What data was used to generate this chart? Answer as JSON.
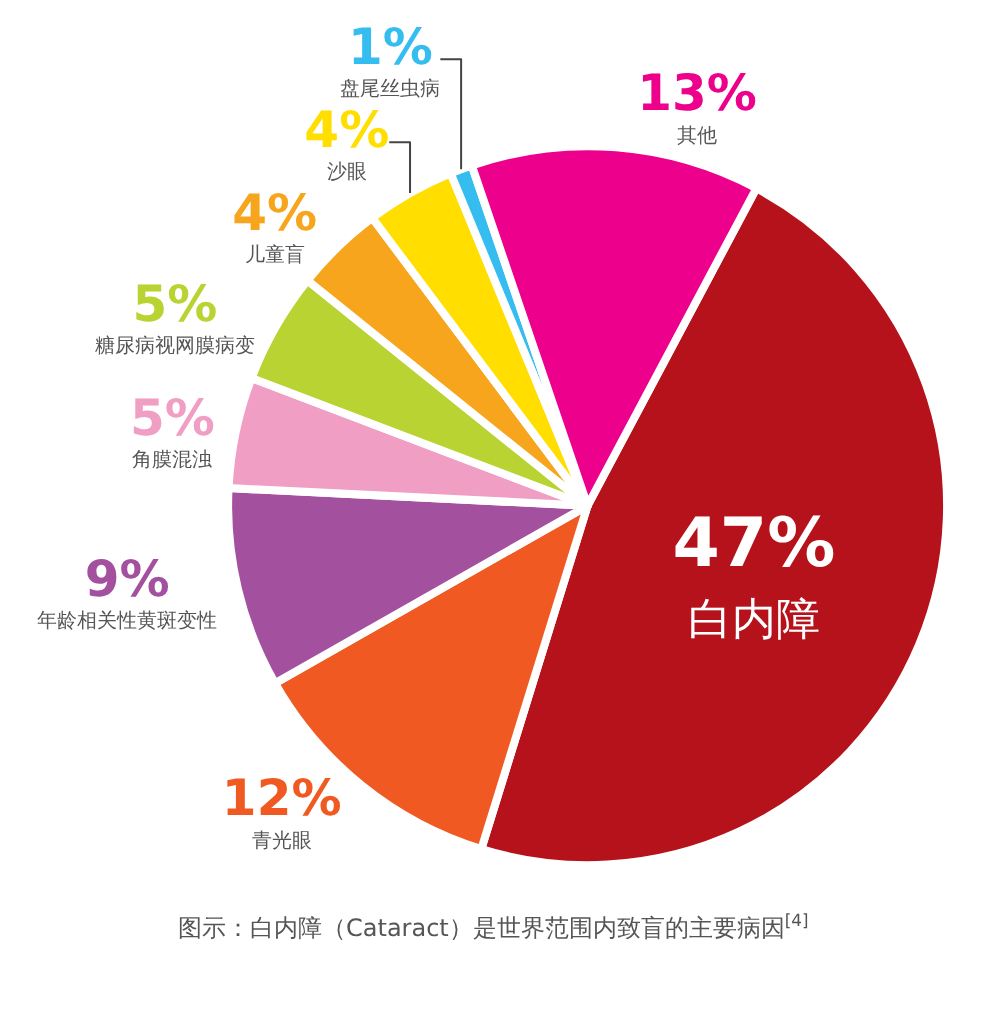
{
  "chart_data": {
    "type": "pie",
    "categories": [
      "白内障",
      "青光眼",
      "年龄相关性黄斑变性",
      "角膜混浊",
      "糖尿病视网膜病变",
      "儿童盲",
      "沙眼",
      "盘尾丝虫病",
      "其他"
    ],
    "values": [
      47,
      12,
      9,
      5,
      5,
      4,
      4,
      1,
      13
    ],
    "value_labels": [
      "47%",
      "12%",
      "9%",
      "5%",
      "5%",
      "4%",
      "4%",
      "1%",
      "13%"
    ],
    "colors": [
      "#b5121b",
      "#f05a22",
      "#a3519f",
      "#f19ec4",
      "#b9d432",
      "#f7a51c",
      "#ffde00",
      "#36bdef",
      "#ec008c"
    ],
    "legend": false,
    "annotations": [
      "图示：白内障（Cataract）是世界范围内致盲的主要病因$^{[4]}$"
    ]
  }
}
